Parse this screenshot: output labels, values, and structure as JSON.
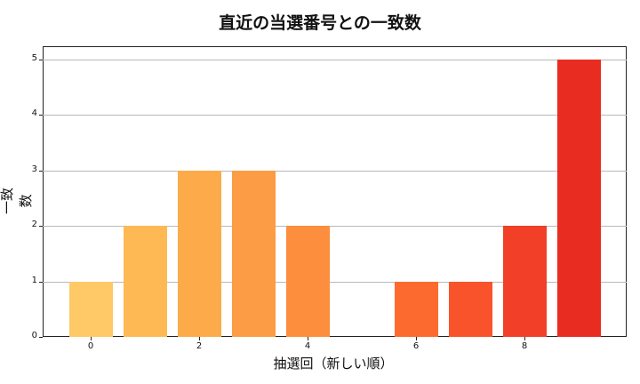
{
  "chart_data": {
    "type": "bar",
    "title": "直近の当選番号との一致数",
    "xlabel": "抽選回（新しい順）",
    "ylabel": "一致数",
    "categories": [
      0,
      1,
      2,
      3,
      4,
      5,
      6,
      7,
      8,
      9
    ],
    "values": [
      1,
      2,
      3,
      3,
      2,
      0,
      1,
      1,
      2,
      5
    ],
    "colors": [
      "#fec966",
      "#feb955",
      "#fdab4a",
      "#fc9c44",
      "#fc8e3d",
      "#fd7a34",
      "#fc6a30",
      "#f9532b",
      "#f13f28",
      "#e92c22"
    ],
    "xticks": [
      "0",
      "2",
      "4",
      "6",
      "8"
    ],
    "yticks": [
      "0",
      "1",
      "2",
      "3",
      "4",
      "5"
    ],
    "ylim": [
      0,
      5.25
    ],
    "xlim": [
      -0.9,
      9.9
    ],
    "grid": "y",
    "legend": null
  }
}
